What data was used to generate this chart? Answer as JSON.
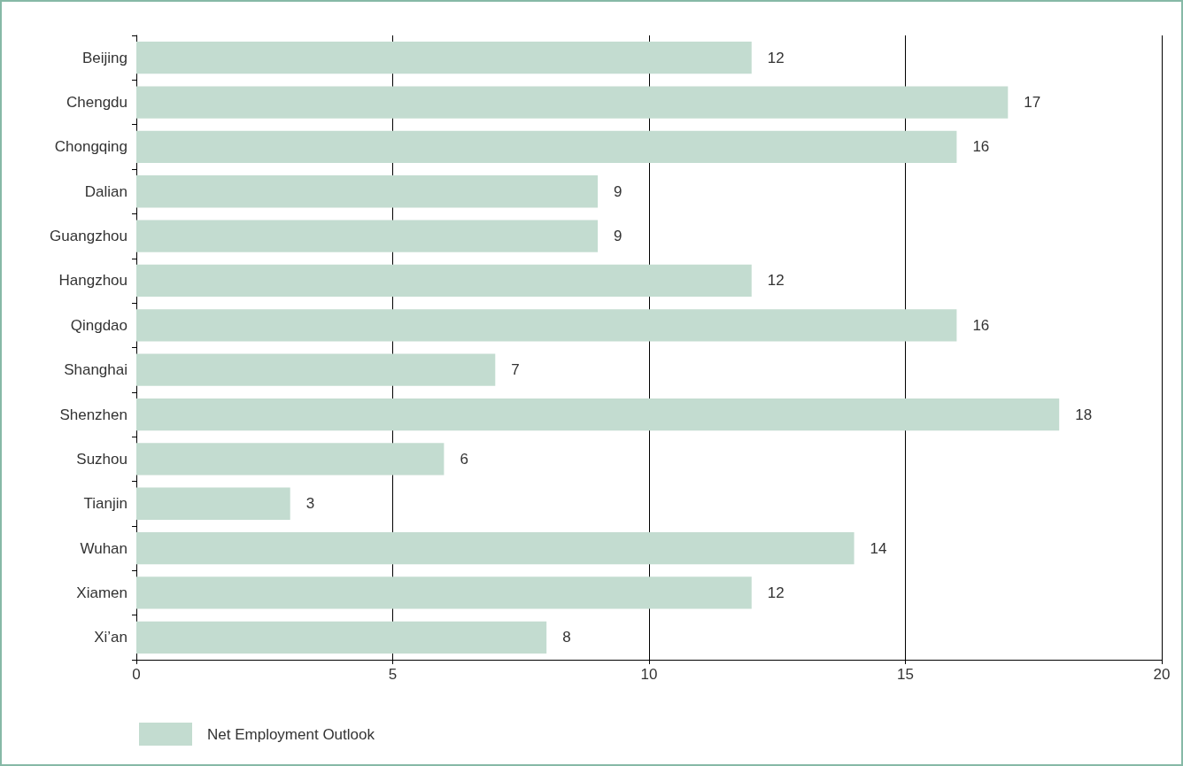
{
  "chart_data": {
    "type": "bar",
    "orientation": "horizontal",
    "categories": [
      "Beijing",
      "Chengdu",
      "Chongqing",
      "Dalian",
      "Guangzhou",
      "Hangzhou",
      "Qingdao",
      "Shanghai",
      "Shenzhen",
      "Suzhou",
      "Tianjin",
      "Wuhan",
      "Xiamen",
      "Xi’an"
    ],
    "series": [
      {
        "name": "Net Employment Outlook",
        "color": "#c3dcd0",
        "values": [
          12,
          17,
          16,
          9,
          9,
          12,
          16,
          7,
          18,
          6,
          3,
          14,
          12,
          8
        ]
      }
    ],
    "xlim": [
      0,
      20
    ],
    "xticks": [
      0,
      5,
      10,
      15,
      20
    ],
    "grid": "x",
    "legend": "bottom left",
    "data_labels": true
  }
}
